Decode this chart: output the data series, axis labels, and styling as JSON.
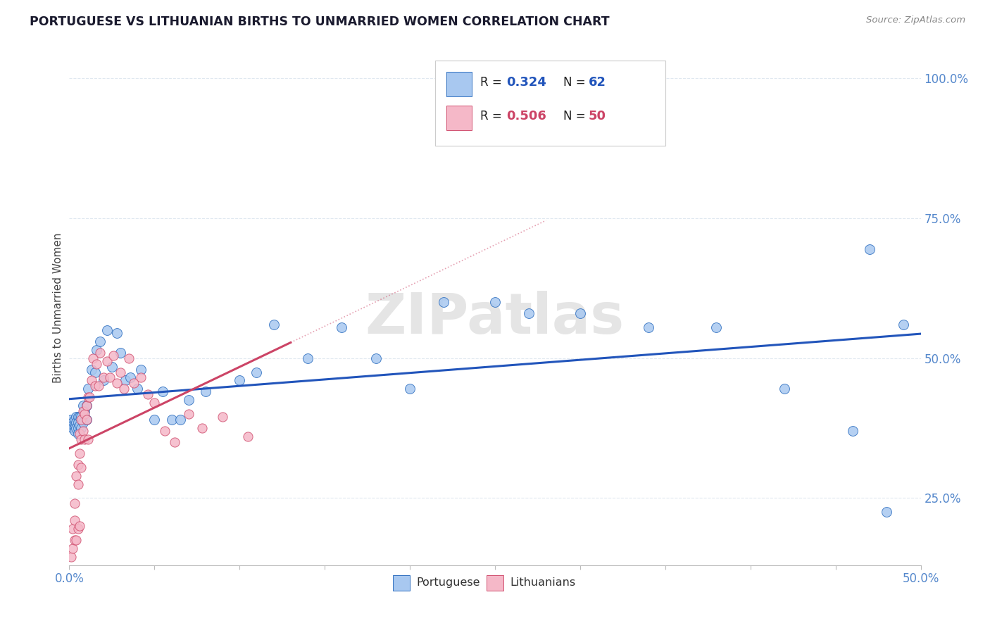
{
  "title": "PORTUGUESE VS LITHUANIAN BIRTHS TO UNMARRIED WOMEN CORRELATION CHART",
  "source": "Source: ZipAtlas.com",
  "ylabel": "Births to Unmarried Women",
  "ytick_values": [
    0.25,
    0.5,
    0.75,
    1.0
  ],
  "ytick_labels": [
    "25.0%",
    "50.0%",
    "75.0%",
    "100.0%"
  ],
  "xlim": [
    0.0,
    0.5
  ],
  "ylim": [
    0.13,
    1.05
  ],
  "legend_r1": "0.324",
  "legend_n1": "62",
  "legend_r2": "0.506",
  "legend_n2": "50",
  "blue_fill": "#a8c8f0",
  "blue_edge": "#3070c0",
  "pink_fill": "#f5b8c8",
  "pink_edge": "#d05070",
  "blue_line": "#2255bb",
  "pink_line": "#cc4466",
  "text_color": "#1a1a2e",
  "tick_color": "#5588cc",
  "grid_color": "#e0e8f0",
  "watermark": "ZIPatlas",
  "portuguese_x": [
    0.001,
    0.002,
    0.002,
    0.002,
    0.003,
    0.003,
    0.003,
    0.003,
    0.004,
    0.004,
    0.004,
    0.005,
    0.005,
    0.005,
    0.005,
    0.006,
    0.006,
    0.007,
    0.007,
    0.008,
    0.008,
    0.009,
    0.01,
    0.01,
    0.011,
    0.013,
    0.015,
    0.016,
    0.018,
    0.02,
    0.022,
    0.025,
    0.028,
    0.03,
    0.033,
    0.036,
    0.04,
    0.042,
    0.05,
    0.055,
    0.06,
    0.065,
    0.07,
    0.08,
    0.1,
    0.11,
    0.12,
    0.14,
    0.16,
    0.18,
    0.2,
    0.22,
    0.25,
    0.27,
    0.3,
    0.34,
    0.38,
    0.42,
    0.46,
    0.47,
    0.48,
    0.49
  ],
  "portuguese_y": [
    0.39,
    0.385,
    0.38,
    0.375,
    0.39,
    0.38,
    0.375,
    0.37,
    0.395,
    0.385,
    0.375,
    0.395,
    0.385,
    0.375,
    0.365,
    0.395,
    0.38,
    0.395,
    0.375,
    0.415,
    0.385,
    0.405,
    0.415,
    0.39,
    0.445,
    0.48,
    0.475,
    0.515,
    0.53,
    0.46,
    0.55,
    0.485,
    0.545,
    0.51,
    0.46,
    0.465,
    0.445,
    0.48,
    0.39,
    0.44,
    0.39,
    0.39,
    0.425,
    0.44,
    0.46,
    0.475,
    0.56,
    0.5,
    0.555,
    0.5,
    0.445,
    0.6,
    0.6,
    0.58,
    0.58,
    0.555,
    0.555,
    0.445,
    0.37,
    0.695,
    0.225,
    0.56
  ],
  "lithuanian_x": [
    0.001,
    0.002,
    0.002,
    0.003,
    0.003,
    0.003,
    0.004,
    0.004,
    0.005,
    0.005,
    0.005,
    0.006,
    0.006,
    0.006,
    0.007,
    0.007,
    0.007,
    0.008,
    0.008,
    0.009,
    0.009,
    0.01,
    0.01,
    0.011,
    0.011,
    0.012,
    0.013,
    0.014,
    0.015,
    0.016,
    0.017,
    0.018,
    0.02,
    0.022,
    0.024,
    0.026,
    0.028,
    0.03,
    0.032,
    0.035,
    0.038,
    0.042,
    0.046,
    0.05,
    0.056,
    0.062,
    0.07,
    0.078,
    0.09,
    0.105
  ],
  "lithuanian_y": [
    0.145,
    0.16,
    0.195,
    0.175,
    0.21,
    0.24,
    0.175,
    0.29,
    0.195,
    0.275,
    0.31,
    0.2,
    0.33,
    0.365,
    0.305,
    0.355,
    0.39,
    0.37,
    0.405,
    0.355,
    0.4,
    0.39,
    0.415,
    0.355,
    0.43,
    0.43,
    0.46,
    0.5,
    0.45,
    0.49,
    0.45,
    0.51,
    0.465,
    0.495,
    0.465,
    0.505,
    0.455,
    0.475,
    0.445,
    0.5,
    0.455,
    0.465,
    0.435,
    0.42,
    0.37,
    0.35,
    0.4,
    0.375,
    0.395,
    0.36
  ]
}
